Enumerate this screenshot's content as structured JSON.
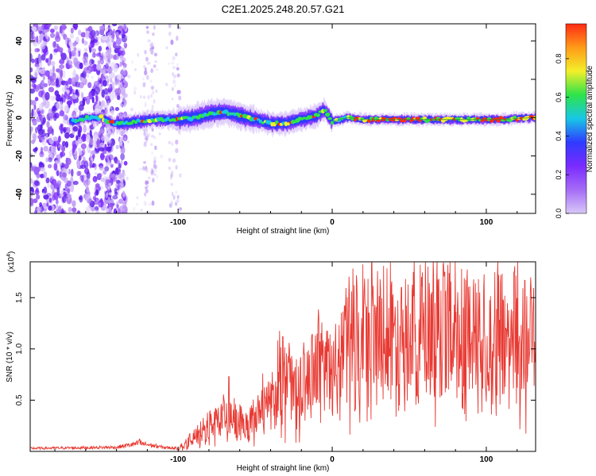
{
  "figure_title": "C2E1.2025.248.20.57.G21",
  "colors": {
    "snr_line": "#e83a33",
    "violet": "#7a2bff",
    "blue": "#2f3bff",
    "cyan": "#18c7e6",
    "green": "#2ee34a",
    "yellow": "#f3ef2a",
    "red": "#ff2b14"
  },
  "chart_data": [
    {
      "type": "heatmap",
      "title": "C2E1.2025.248.20.57.G21",
      "xlabel": "Height of straight line (km)",
      "ylabel": "Frequency (Hz)",
      "xlim": [
        -196,
        132
      ],
      "ylim": [
        -50,
        49
      ],
      "xticks": [
        -100,
        0,
        100
      ],
      "yticks": [
        -40,
        -20,
        0,
        20,
        40
      ],
      "colorbar": {
        "label": "Normalized spectral amplitude",
        "range": [
          0,
          0.98
        ],
        "ticks": [
          0.0,
          0.2,
          0.4,
          0.6,
          0.8
        ],
        "colormap": [
          "#d8c8f8",
          "#a56cf6",
          "#7a2bff",
          "#2f3bff",
          "#18c7e6",
          "#2ee34a",
          "#f3ef2a",
          "#ff9b18",
          "#ff2b14"
        ]
      },
      "ridge": {
        "description": "dominant frequency track vs height",
        "x": [
          -168,
          -160,
          -150,
          -142,
          -135,
          -125,
          -115,
          -100,
          -90,
          -80,
          -70,
          -60,
          -50,
          -40,
          -30,
          -20,
          -10,
          -5,
          0,
          10,
          20,
          30,
          50,
          80,
          110,
          130
        ],
        "y": [
          -2,
          0,
          0,
          -3,
          -3,
          -2,
          -1,
          -1,
          0,
          2,
          3,
          1,
          -1,
          -3,
          -3,
          -1,
          1,
          4,
          -2,
          0,
          -1,
          -1,
          -1,
          -1,
          -1,
          0
        ]
      }
    },
    {
      "type": "line",
      "title": "",
      "xlabel": "Height of straight line (km)",
      "ylabel": "SNR (10 * v/v)",
      "scale_label": "(x10",
      "scale_exponent": "4",
      "xlim": [
        -196,
        132
      ],
      "ylim": [
        0,
        18500
      ],
      "xticks": [
        -100,
        0,
        100
      ],
      "ytick_labels": [
        "0.5",
        "1.0",
        "1.5"
      ],
      "yticks": [
        5000,
        10000,
        15000
      ],
      "series": [
        {
          "name": "SNR",
          "envelope_x": [
            -196,
            -140,
            -125,
            -110,
            -100,
            -90,
            -80,
            -70,
            -60,
            -55,
            -50,
            -40,
            -35,
            -30,
            -20,
            -15,
            -10,
            -5,
            0,
            5,
            10,
            20,
            25,
            40,
            60,
            70,
            80,
            90,
            100,
            110,
            120,
            130
          ],
          "envelope_y": [
            300,
            400,
            800,
            400,
            300,
            1500,
            2800,
            3800,
            3300,
            2500,
            4200,
            5500,
            8000,
            7500,
            7000,
            7800,
            9500,
            10500,
            8000,
            10500,
            12000,
            12800,
            13500,
            13000,
            13000,
            13800,
            13500,
            13000,
            13000,
            13200,
            13500,
            13000
          ],
          "peaks_x": [
            -125,
            -67,
            -45,
            -32,
            -18,
            -13,
            -8,
            -3,
            8,
            24,
            45,
            72,
            84,
            95,
            98,
            118,
            125
          ],
          "peaks_y": [
            1200,
            7300,
            7600,
            11200,
            9500,
            11400,
            10700,
            11800,
            14200,
            13500,
            16000,
            18200,
            17800,
            16800,
            10000,
            17500,
            16700
          ]
        }
      ]
    }
  ]
}
